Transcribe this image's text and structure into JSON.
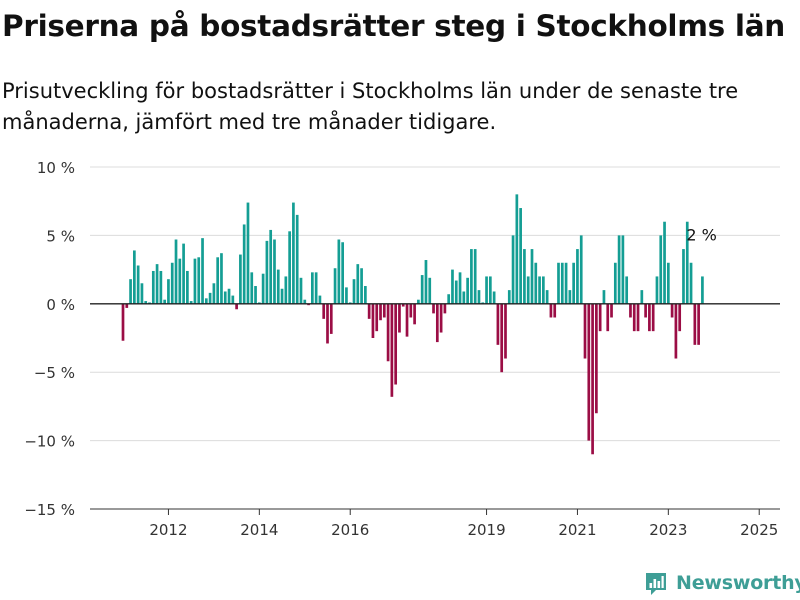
{
  "header": {
    "title": "Priserna på bostadsrätter steg i Stockholms län",
    "subtitle": "Prisutveckling för bostadsrätter i Stockholms län under de senaste tre månaderna, jämfört med tre månader tidigare."
  },
  "logo": {
    "text": "Newsworthy",
    "icon": "bar-chart-logo-icon"
  },
  "colors": {
    "positive": "#149e94",
    "negative": "#9b0d45",
    "grid": "#dcdcdc",
    "zero_line": "#222222"
  },
  "chart_data": {
    "type": "bar",
    "x_start": "2011-01",
    "ylim": [
      -15,
      10
    ],
    "y_ticks": [
      10,
      5,
      0,
      -5,
      -10,
      -15
    ],
    "y_tick_labels": [
      "10 %",
      "5 %",
      "0 %",
      "−5 %",
      "−10 %",
      "−15 %"
    ],
    "x_tick_years": [
      "2012",
      "2014",
      "2016",
      "2019",
      "2021",
      "2023",
      "2025"
    ],
    "last_value_label": "2 %",
    "grid": true,
    "values": [
      -2.7,
      -0.3,
      1.8,
      3.9,
      2.8,
      1.5,
      0.2,
      0.1,
      2.4,
      2.9,
      2.4,
      0.3,
      1.8,
      3.0,
      4.7,
      3.3,
      4.4,
      2.4,
      0.2,
      3.3,
      3.4,
      4.8,
      0.4,
      0.8,
      1.5,
      3.4,
      3.7,
      0.9,
      1.1,
      0.6,
      -0.4,
      3.6,
      5.8,
      7.4,
      2.3,
      1.3,
      0.1,
      2.2,
      4.6,
      5.4,
      4.7,
      2.5,
      1.1,
      2.0,
      5.3,
      7.4,
      6.5,
      1.9,
      0.3,
      -0.1,
      2.3,
      2.3,
      0.6,
      -1.1,
      -2.9,
      -2.2,
      2.6,
      4.7,
      4.5,
      1.2,
      0.1,
      1.8,
      2.9,
      2.6,
      1.3,
      -1.1,
      -2.5,
      -2.0,
      -1.2,
      -1.0,
      -4.2,
      -6.8,
      -5.9,
      -2.1,
      -0.2,
      -2.4,
      -1.0,
      -1.5,
      0.3,
      2.1,
      3.2,
      1.9,
      -0.7,
      -2.8,
      -2.1,
      -0.7,
      0.7,
      2.5,
      1.7,
      2.3,
      0.9,
      1.9,
      4.0,
      4.0,
      1.0,
      0.1,
      2.0,
      2.0,
      0.9,
      -3.0,
      -5.0,
      -4.0,
      1.0,
      5.0,
      8.0,
      7.0,
      4.0,
      2.0,
      4.0,
      3.0,
      2.0,
      2.0,
      1.0,
      -1.0,
      -1.0,
      3.0,
      3.0,
      3.0,
      1.0,
      3.0,
      4.0,
      5.0,
      -4.0,
      -10.0,
      -11.0,
      -8.0,
      -2.0,
      1.0,
      -2.0,
      -1.0,
      3.0,
      5.0,
      5.0,
      2.0,
      -1.0,
      -2.0,
      -2.0,
      1.0,
      -1.0,
      -2.0,
      -2.0,
      2.0,
      5.0,
      6.0,
      3.0,
      -1.0,
      -4.0,
      -2.0,
      4.0,
      6.0,
      3.0,
      -3.0,
      -3.0,
      2.0
    ]
  }
}
